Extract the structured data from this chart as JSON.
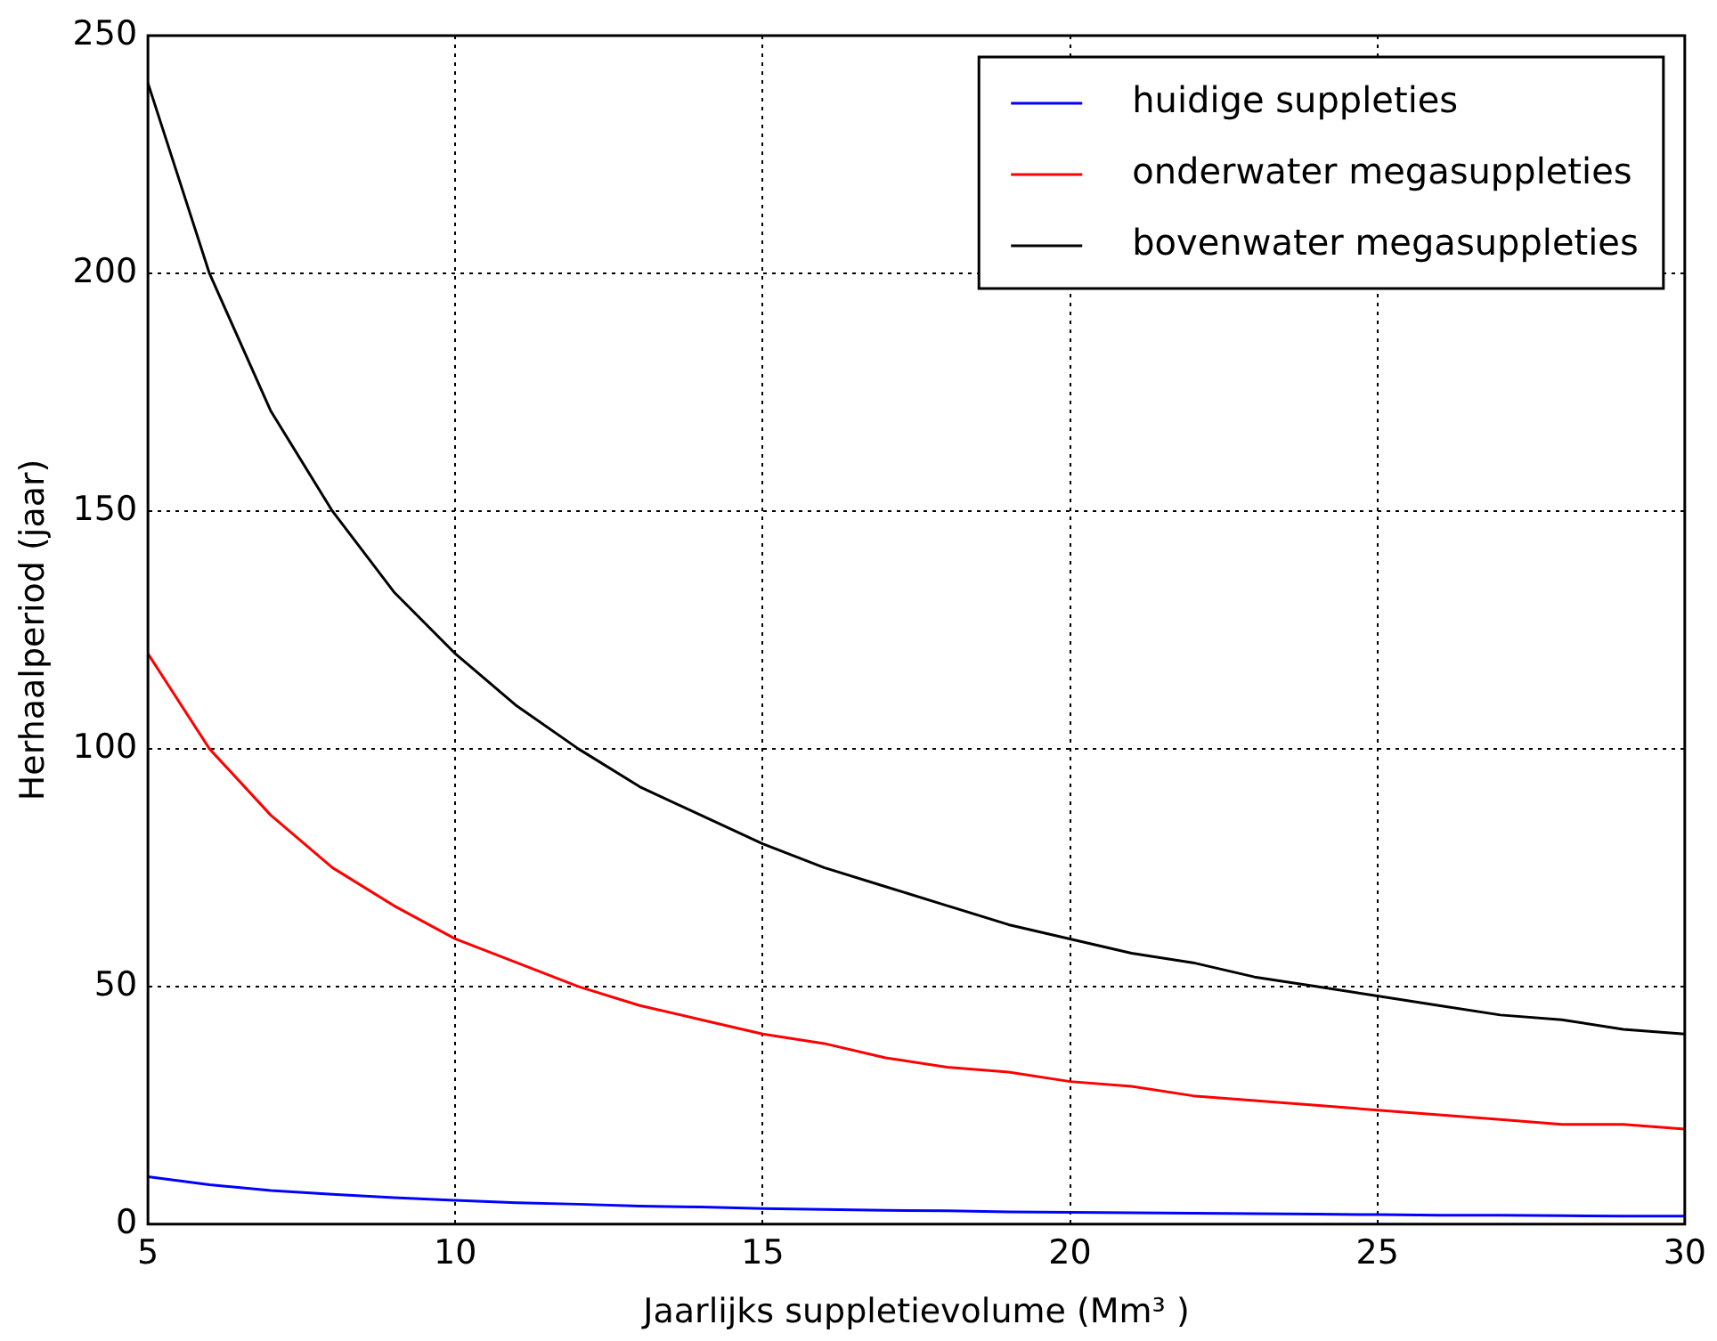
{
  "chart_data": {
    "type": "line",
    "xlabel": "Jaarlijks suppletievolume (Mm³ )",
    "ylabel": "Herhaalperiod (jaar)",
    "x": [
      5,
      6,
      7,
      8,
      9,
      10,
      11,
      12,
      13,
      14,
      15,
      16,
      17,
      18,
      19,
      20,
      21,
      22,
      23,
      24,
      25,
      26,
      27,
      28,
      29,
      30
    ],
    "series": [
      {
        "name": "huidige suppleties",
        "color": "#0000ff",
        "values": [
          10,
          8.3,
          7.1,
          6.3,
          5.6,
          5,
          4.5,
          4.2,
          3.8,
          3.6,
          3.3,
          3.1,
          2.9,
          2.8,
          2.6,
          2.5,
          2.4,
          2.3,
          2.2,
          2.1,
          2,
          1.9,
          1.9,
          1.8,
          1.7,
          1.7
        ]
      },
      {
        "name": "onderwater megasuppleties",
        "color": "#ff0000",
        "values": [
          120,
          100,
          86,
          75,
          67,
          60,
          55,
          50,
          46,
          43,
          40,
          38,
          35,
          33,
          32,
          30,
          29,
          27,
          26,
          25,
          24,
          23,
          22,
          21,
          21,
          20
        ]
      },
      {
        "name": "bovenwater megasuppleties",
        "color": "#000000",
        "values": [
          240,
          200,
          171,
          150,
          133,
          120,
          109,
          100,
          92,
          86,
          80,
          75,
          71,
          67,
          63,
          60,
          57,
          55,
          52,
          50,
          48,
          46,
          44,
          43,
          41,
          40
        ]
      }
    ],
    "xlim": [
      5,
      30
    ],
    "xticks": [
      5,
      10,
      15,
      20,
      25,
      30
    ],
    "ylim": [
      0,
      250
    ],
    "yticks": [
      0,
      50,
      100,
      150,
      200,
      250
    ],
    "grid": true,
    "legend": "top right",
    "marker": "none",
    "line_style": "solid"
  }
}
